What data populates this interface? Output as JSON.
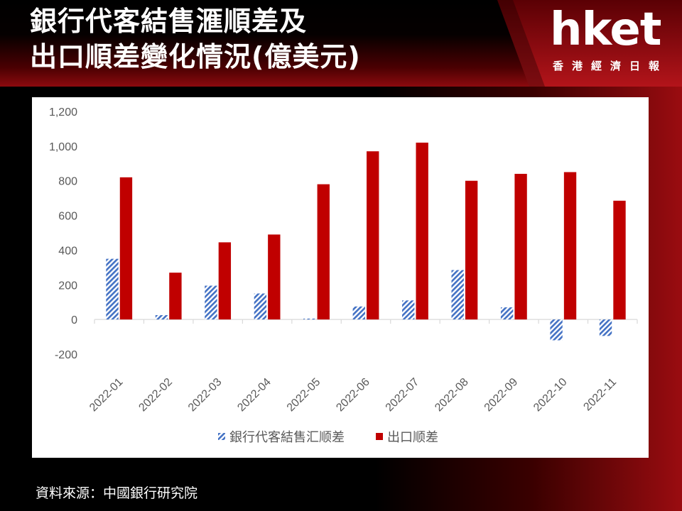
{
  "header": {
    "title_line1": "銀行代客結售滙順差及",
    "title_line2": "出口順差變化情況(億美元)",
    "logo_text": "hket",
    "logo_subtitle": "香港經濟日報"
  },
  "source": "資料來源：中國銀行研究院",
  "colors": {
    "series1": "#4472c4",
    "series2": "#c00000"
  },
  "chart_data": {
    "type": "bar",
    "title": "",
    "xlabel": "",
    "ylabel": "",
    "categories": [
      "2022-01",
      "2022-02",
      "2022-03",
      "2022-04",
      "2022-05",
      "2022-06",
      "2022-07",
      "2022-08",
      "2022-09",
      "2022-10",
      "2022-11"
    ],
    "series": [
      {
        "name": "銀行代客結售汇顺差",
        "pattern": "diagonal-hatch",
        "values": [
          350,
          25,
          195,
          150,
          5,
          75,
          110,
          285,
          70,
          -120,
          -95
        ]
      },
      {
        "name": "出口顺差",
        "pattern": "solid",
        "values": [
          820,
          270,
          445,
          490,
          780,
          970,
          1020,
          800,
          840,
          850,
          685
        ]
      }
    ],
    "ylim": [
      -200,
      1200
    ],
    "yticks": [
      -200,
      0,
      200,
      400,
      600,
      800,
      1000,
      1200
    ],
    "ytick_labels": [
      "-200",
      "0",
      "200",
      "400",
      "600",
      "800",
      "1,000",
      "1,200"
    ],
    "grid": false,
    "legend_position": "bottom"
  }
}
